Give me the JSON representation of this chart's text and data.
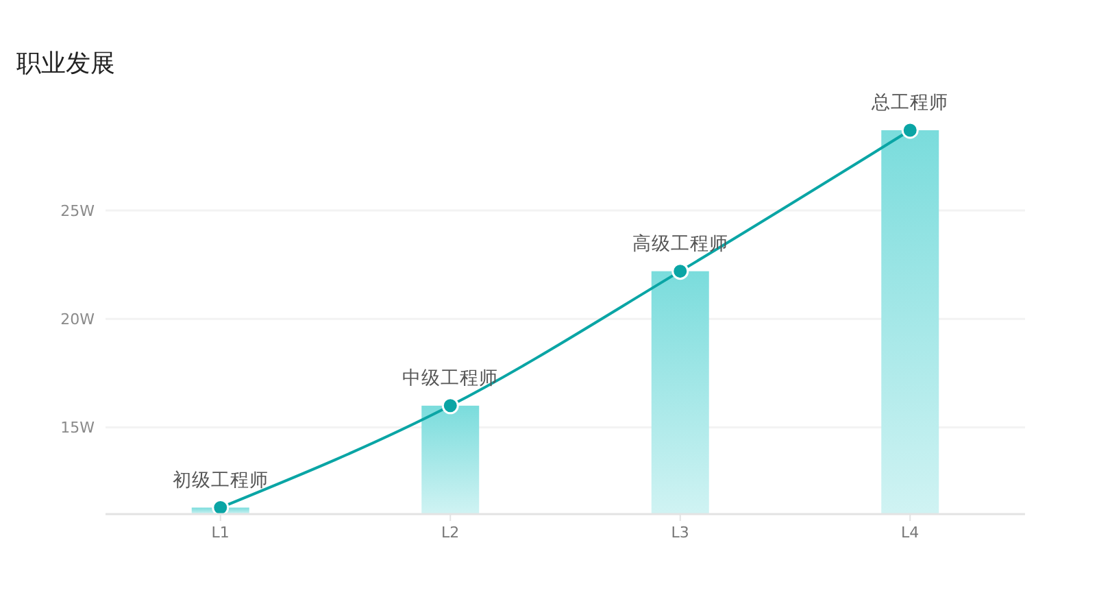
{
  "chart_data": {
    "type": "bar",
    "title": "职业发展",
    "categories": [
      "L1",
      "L2",
      "L3",
      "L4"
    ],
    "ylim": [
      11,
      28.7
    ],
    "yticks": [
      {
        "value": 15,
        "label": "15W"
      },
      {
        "value": 20,
        "label": "20W"
      },
      {
        "value": 25,
        "label": "25W"
      }
    ],
    "grid": "y",
    "marker": "circle",
    "series": [
      {
        "color": "#7adcdc",
        "values": [
          11.3,
          16,
          22.2,
          28.7
        ]
      },
      {
        "type": "line",
        "color": "#0aa5a5",
        "values": [
          11.3,
          16,
          22.2,
          28.7
        ]
      }
    ],
    "annotations": [
      {
        "text": "初级工程师",
        "x": "L1",
        "y": 11.3
      },
      {
        "text": "中级工程师",
        "x": "L2",
        "y": 16
      },
      {
        "text": "高级工程师",
        "x": "L3",
        "y": 22.2
      },
      {
        "text": "总工程师",
        "x": "L4",
        "y": 28.7
      }
    ]
  }
}
